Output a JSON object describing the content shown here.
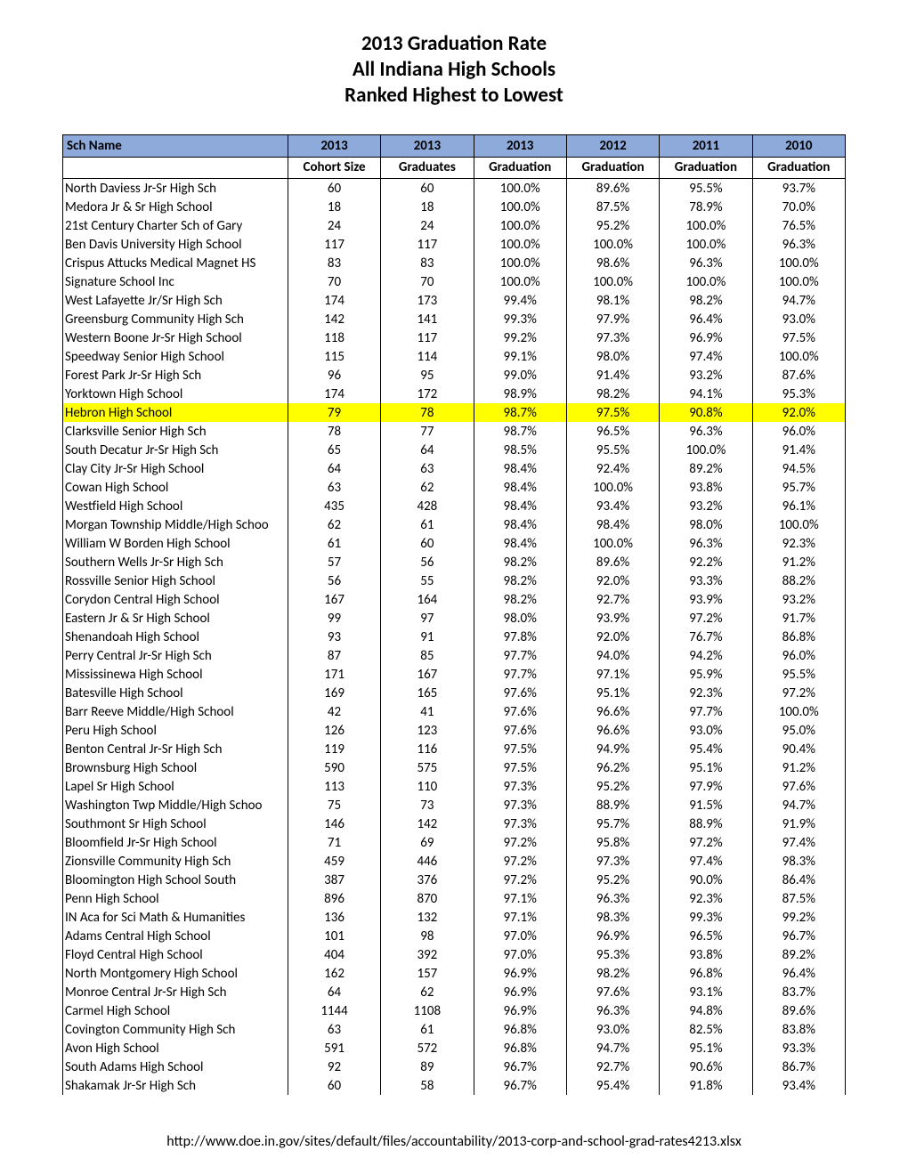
{
  "title": {
    "line1": "2013 Graduation Rate",
    "line2": "All Indiana High Schools",
    "line3": "Ranked Highest to Lowest"
  },
  "headers": {
    "name": "Sch Name",
    "years": [
      "2013",
      "2013",
      "2013",
      "2012",
      "2011",
      "2010"
    ],
    "sub": [
      "Cohort Size",
      "Graduates",
      "Graduation",
      "Graduation",
      "Graduation",
      "Graduation"
    ]
  },
  "highlight_school": "Hebron High School",
  "rows": [
    {
      "name": "North Daviess Jr-Sr High Sch",
      "c": "60",
      "g": "60",
      "g13": "100.0%",
      "g12": "89.6%",
      "g11": "95.5%",
      "g10": "93.7%"
    },
    {
      "name": "Medora Jr & Sr High School",
      "c": "18",
      "g": "18",
      "g13": "100.0%",
      "g12": "87.5%",
      "g11": "78.9%",
      "g10": "70.0%"
    },
    {
      "name": "21st Century Charter Sch of Gary",
      "c": "24",
      "g": "24",
      "g13": "100.0%",
      "g12": "95.2%",
      "g11": "100.0%",
      "g10": "76.5%"
    },
    {
      "name": "Ben Davis University High School",
      "c": "117",
      "g": "117",
      "g13": "100.0%",
      "g12": "100.0%",
      "g11": "100.0%",
      "g10": "96.3%"
    },
    {
      "name": "Crispus Attucks Medical Magnet HS",
      "c": "83",
      "g": "83",
      "g13": "100.0%",
      "g12": "98.6%",
      "g11": "96.3%",
      "g10": "100.0%"
    },
    {
      "name": "Signature School Inc",
      "c": "70",
      "g": "70",
      "g13": "100.0%",
      "g12": "100.0%",
      "g11": "100.0%",
      "g10": "100.0%"
    },
    {
      "name": "West Lafayette Jr/Sr High Sch",
      "c": "174",
      "g": "173",
      "g13": "99.4%",
      "g12": "98.1%",
      "g11": "98.2%",
      "g10": "94.7%"
    },
    {
      "name": "Greensburg Community High Sch",
      "c": "142",
      "g": "141",
      "g13": "99.3%",
      "g12": "97.9%",
      "g11": "96.4%",
      "g10": "93.0%"
    },
    {
      "name": "Western Boone Jr-Sr High School",
      "c": "118",
      "g": "117",
      "g13": "99.2%",
      "g12": "97.3%",
      "g11": "96.9%",
      "g10": "97.5%"
    },
    {
      "name": "Speedway Senior High School",
      "c": "115",
      "g": "114",
      "g13": "99.1%",
      "g12": "98.0%",
      "g11": "97.4%",
      "g10": "100.0%"
    },
    {
      "name": "Forest Park Jr-Sr High Sch",
      "c": "96",
      "g": "95",
      "g13": "99.0%",
      "g12": "91.4%",
      "g11": "93.2%",
      "g10": "87.6%"
    },
    {
      "name": "Yorktown High School",
      "c": "174",
      "g": "172",
      "g13": "98.9%",
      "g12": "98.2%",
      "g11": "94.1%",
      "g10": "95.3%"
    },
    {
      "name": "Hebron High School",
      "c": "79",
      "g": "78",
      "g13": "98.7%",
      "g12": "97.5%",
      "g11": "90.8%",
      "g10": "92.0%"
    },
    {
      "name": "Clarksville Senior High Sch",
      "c": "78",
      "g": "77",
      "g13": "98.7%",
      "g12": "96.5%",
      "g11": "96.3%",
      "g10": "96.0%"
    },
    {
      "name": "South Decatur Jr-Sr High Sch",
      "c": "65",
      "g": "64",
      "g13": "98.5%",
      "g12": "95.5%",
      "g11": "100.0%",
      "g10": "91.4%"
    },
    {
      "name": "Clay City Jr-Sr High School",
      "c": "64",
      "g": "63",
      "g13": "98.4%",
      "g12": "92.4%",
      "g11": "89.2%",
      "g10": "94.5%"
    },
    {
      "name": "Cowan High School",
      "c": "63",
      "g": "62",
      "g13": "98.4%",
      "g12": "100.0%",
      "g11": "93.8%",
      "g10": "95.7%"
    },
    {
      "name": "Westfield High School",
      "c": "435",
      "g": "428",
      "g13": "98.4%",
      "g12": "93.4%",
      "g11": "93.2%",
      "g10": "96.1%"
    },
    {
      "name": "Morgan Township Middle/High Schoo",
      "c": "62",
      "g": "61",
      "g13": "98.4%",
      "g12": "98.4%",
      "g11": "98.0%",
      "g10": "100.0%"
    },
    {
      "name": "William W Borden High School",
      "c": "61",
      "g": "60",
      "g13": "98.4%",
      "g12": "100.0%",
      "g11": "96.3%",
      "g10": "92.3%"
    },
    {
      "name": "Southern Wells Jr-Sr High Sch",
      "c": "57",
      "g": "56",
      "g13": "98.2%",
      "g12": "89.6%",
      "g11": "92.2%",
      "g10": "91.2%"
    },
    {
      "name": "Rossville Senior High School",
      "c": "56",
      "g": "55",
      "g13": "98.2%",
      "g12": "92.0%",
      "g11": "93.3%",
      "g10": "88.2%"
    },
    {
      "name": "Corydon Central High School",
      "c": "167",
      "g": "164",
      "g13": "98.2%",
      "g12": "92.7%",
      "g11": "93.9%",
      "g10": "93.2%"
    },
    {
      "name": "Eastern Jr & Sr High School",
      "c": "99",
      "g": "97",
      "g13": "98.0%",
      "g12": "93.9%",
      "g11": "97.2%",
      "g10": "91.7%"
    },
    {
      "name": "Shenandoah High School",
      "c": "93",
      "g": "91",
      "g13": "97.8%",
      "g12": "92.0%",
      "g11": "76.7%",
      "g10": "86.8%"
    },
    {
      "name": "Perry Central Jr-Sr High Sch",
      "c": "87",
      "g": "85",
      "g13": "97.7%",
      "g12": "94.0%",
      "g11": "94.2%",
      "g10": "96.0%"
    },
    {
      "name": "Mississinewa High School",
      "c": "171",
      "g": "167",
      "g13": "97.7%",
      "g12": "97.1%",
      "g11": "95.9%",
      "g10": "95.5%"
    },
    {
      "name": "Batesville High School",
      "c": "169",
      "g": "165",
      "g13": "97.6%",
      "g12": "95.1%",
      "g11": "92.3%",
      "g10": "97.2%"
    },
    {
      "name": "Barr Reeve Middle/High School",
      "c": "42",
      "g": "41",
      "g13": "97.6%",
      "g12": "96.6%",
      "g11": "97.7%",
      "g10": "100.0%"
    },
    {
      "name": "Peru High School",
      "c": "126",
      "g": "123",
      "g13": "97.6%",
      "g12": "96.6%",
      "g11": "93.0%",
      "g10": "95.0%"
    },
    {
      "name": "Benton Central Jr-Sr High Sch",
      "c": "119",
      "g": "116",
      "g13": "97.5%",
      "g12": "94.9%",
      "g11": "95.4%",
      "g10": "90.4%"
    },
    {
      "name": "Brownsburg High School",
      "c": "590",
      "g": "575",
      "g13": "97.5%",
      "g12": "96.2%",
      "g11": "95.1%",
      "g10": "91.2%"
    },
    {
      "name": "Lapel Sr High School",
      "c": "113",
      "g": "110",
      "g13": "97.3%",
      "g12": "95.2%",
      "g11": "97.9%",
      "g10": "97.6%"
    },
    {
      "name": "Washington Twp Middle/High Schoo",
      "c": "75",
      "g": "73",
      "g13": "97.3%",
      "g12": "88.9%",
      "g11": "91.5%",
      "g10": "94.7%"
    },
    {
      "name": "Southmont Sr High School",
      "c": "146",
      "g": "142",
      "g13": "97.3%",
      "g12": "95.7%",
      "g11": "88.9%",
      "g10": "91.9%"
    },
    {
      "name": "Bloomfield Jr-Sr High School",
      "c": "71",
      "g": "69",
      "g13": "97.2%",
      "g12": "95.8%",
      "g11": "97.2%",
      "g10": "97.4%"
    },
    {
      "name": "Zionsville Community High Sch",
      "c": "459",
      "g": "446",
      "g13": "97.2%",
      "g12": "97.3%",
      "g11": "97.4%",
      "g10": "98.3%"
    },
    {
      "name": "Bloomington High School South",
      "c": "387",
      "g": "376",
      "g13": "97.2%",
      "g12": "95.2%",
      "g11": "90.0%",
      "g10": "86.4%"
    },
    {
      "name": "Penn High School",
      "c": "896",
      "g": "870",
      "g13": "97.1%",
      "g12": "96.3%",
      "g11": "92.3%",
      "g10": "87.5%"
    },
    {
      "name": "IN Aca for Sci Math & Humanities",
      "c": "136",
      "g": "132",
      "g13": "97.1%",
      "g12": "98.3%",
      "g11": "99.3%",
      "g10": "99.2%"
    },
    {
      "name": "Adams Central High School",
      "c": "101",
      "g": "98",
      "g13": "97.0%",
      "g12": "96.9%",
      "g11": "96.5%",
      "g10": "96.7%"
    },
    {
      "name": "Floyd Central High School",
      "c": "404",
      "g": "392",
      "g13": "97.0%",
      "g12": "95.3%",
      "g11": "93.8%",
      "g10": "89.2%"
    },
    {
      "name": "North Montgomery High School",
      "c": "162",
      "g": "157",
      "g13": "96.9%",
      "g12": "98.2%",
      "g11": "96.8%",
      "g10": "96.4%"
    },
    {
      "name": "Monroe Central Jr-Sr High Sch",
      "c": "64",
      "g": "62",
      "g13": "96.9%",
      "g12": "97.6%",
      "g11": "93.1%",
      "g10": "83.7%"
    },
    {
      "name": "Carmel High School",
      "c": "1144",
      "g": "1108",
      "g13": "96.9%",
      "g12": "96.3%",
      "g11": "94.8%",
      "g10": "89.6%"
    },
    {
      "name": "Covington Community High Sch",
      "c": "63",
      "g": "61",
      "g13": "96.8%",
      "g12": "93.0%",
      "g11": "82.5%",
      "g10": "83.8%"
    },
    {
      "name": "Avon High School",
      "c": "591",
      "g": "572",
      "g13": "96.8%",
      "g12": "94.7%",
      "g11": "95.1%",
      "g10": "93.3%"
    },
    {
      "name": "South Adams High School",
      "c": "92",
      "g": "89",
      "g13": "96.7%",
      "g12": "92.7%",
      "g11": "90.6%",
      "g10": "86.7%"
    },
    {
      "name": "Shakamak Jr-Sr High Sch",
      "c": "60",
      "g": "58",
      "g13": "96.7%",
      "g12": "95.4%",
      "g11": "91.8%",
      "g10": "93.4%"
    }
  ],
  "footer": "http://www.doe.in.gov/sites/default/files/accountability/2013-corp-and-school-grad-rates4213.xlsx",
  "style": {
    "header_bg": "#8eaadb",
    "highlight_bg": "#ffff00",
    "border": "#000000",
    "page_bg": "#ffffff",
    "title_fontsize": 23,
    "body_fontsize": 15,
    "footer_fontsize": 16
  }
}
